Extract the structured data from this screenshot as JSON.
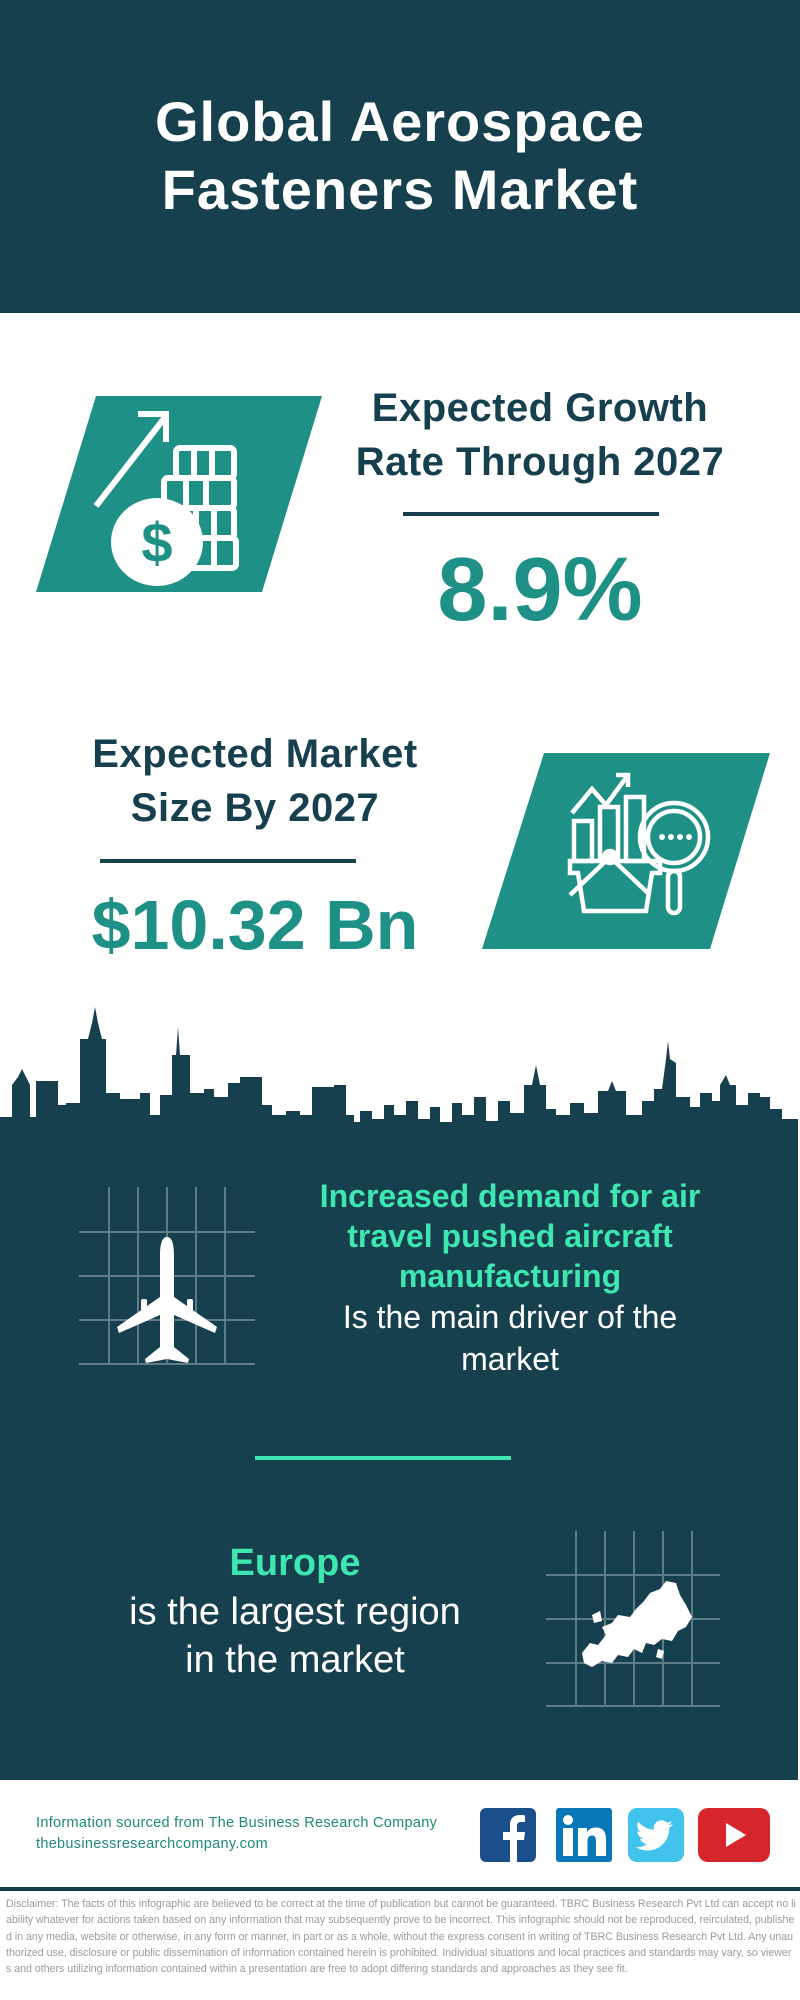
{
  "header": {
    "title_line1": "Global Aerospace",
    "title_line2": "Fasteners Market"
  },
  "growth": {
    "heading_line1": "Expected Growth",
    "heading_line2": "Rate Through 2027",
    "value": "8.9%",
    "icon": "money-growth-icon"
  },
  "market_size": {
    "heading_line1": "Expected Market",
    "heading_line2": "Size By 2027",
    "value": "$10.32 Bn",
    "icon": "market-analysis-icon"
  },
  "driver": {
    "highlight_lines": [
      "Increased demand for air",
      "travel pushed aircraft",
      "manufacturing"
    ],
    "text_lines": [
      "Is the main driver of the",
      "market"
    ],
    "icon": "airplane-icon"
  },
  "region": {
    "highlight": "Europe",
    "text_lines": [
      "is the largest region",
      "in the market"
    ],
    "icon": "europe-map-icon"
  },
  "footer": {
    "source_line": "Information sourced from The Business Research Company",
    "website": "thebusinessresearchcompany.com",
    "social": [
      {
        "name": "facebook",
        "color": "#1d4e8c"
      },
      {
        "name": "linkedin",
        "color": "#0a78b6"
      },
      {
        "name": "twitter",
        "color": "#41c3ec"
      },
      {
        "name": "youtube",
        "color": "#d7262b"
      }
    ],
    "disclaimer": "Disclaimer: The facts of this infographic are believed to be correct at the time of publication but cannot be guaranteed. TBRC Business Research Pvt Ltd can accept no liability whatever for actions taken based on any information that may subsequently prove to be incorrect. This infographic should not be reproduced, reirculated, published in any media, website or otherwise, in any form or manner, in part or as a whole, without the express consent in writing of TBRC Business Research Pvt Ltd. Any unauthorized use, disclosure or public dissemination of information contained herein is prohibited. Individual situations and local practices and standards may vary, so viewers and others utilizing information contained within a presentation are free to adopt differing standards and approaches as they see fit."
  },
  "colors": {
    "dark": "#17404f",
    "teal": "#1e9085",
    "accent_green": "#3ee6b0"
  }
}
